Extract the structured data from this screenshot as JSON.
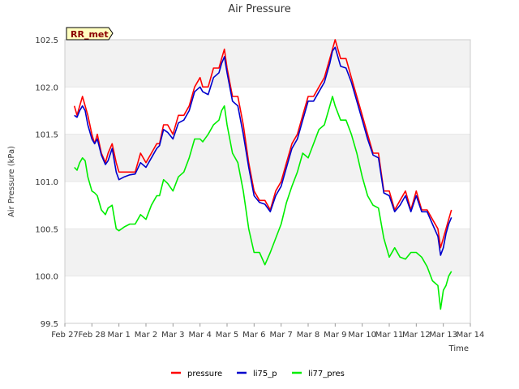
{
  "chart_data": {
    "type": "line",
    "title": "Air Pressure",
    "xlabel": "Time",
    "ylabel": "Air Pressure (kPa)",
    "ylim": [
      99.5,
      102.5
    ],
    "xlim": [
      0,
      15
    ],
    "x_unit": "days",
    "x_ticks": [
      {
        "x": 0,
        "label": "Feb 27"
      },
      {
        "x": 1,
        "label": "Feb 28"
      },
      {
        "x": 2,
        "label": "Mar 1"
      },
      {
        "x": 3,
        "label": "Mar 2"
      },
      {
        "x": 4,
        "label": "Mar 3"
      },
      {
        "x": 5,
        "label": "Mar 4"
      },
      {
        "x": 6,
        "label": "Mar 5"
      },
      {
        "x": 7,
        "label": "Mar 6"
      },
      {
        "x": 8,
        "label": "Mar 7"
      },
      {
        "x": 9,
        "label": "Mar 8"
      },
      {
        "x": 10,
        "label": "Mar 9"
      },
      {
        "x": 11,
        "label": "Mar 10"
      },
      {
        "x": 12,
        "label": "Mar 11"
      },
      {
        "x": 13,
        "label": "Mar 12"
      },
      {
        "x": 14,
        "label": "Mar 13"
      },
      {
        "x": 15,
        "label": "Mar 14"
      }
    ],
    "y_ticks": [
      99.5,
      100.0,
      100.5,
      101.0,
      101.5,
      102.0,
      102.5
    ],
    "grid": "horizontal bands",
    "legend_position": "bottom",
    "annotation": "RR_met",
    "series": [
      {
        "name": "pressure",
        "color": "#ff0000",
        "x": [
          0.35,
          0.45,
          0.55,
          0.65,
          0.75,
          0.85,
          1.0,
          1.1,
          1.2,
          1.35,
          1.5,
          1.6,
          1.75,
          1.9,
          2.0,
          2.2,
          2.4,
          2.6,
          2.8,
          3.0,
          3.2,
          3.4,
          3.5,
          3.65,
          3.8,
          4.0,
          4.2,
          4.4,
          4.6,
          4.8,
          5.0,
          5.1,
          5.3,
          5.5,
          5.7,
          5.8,
          5.9,
          6.0,
          6.2,
          6.4,
          6.6,
          6.8,
          7.0,
          7.2,
          7.4,
          7.6,
          7.8,
          8.0,
          8.2,
          8.4,
          8.6,
          8.8,
          9.0,
          9.2,
          9.4,
          9.6,
          9.8,
          9.9,
          10.0,
          10.2,
          10.4,
          10.6,
          10.8,
          11.0,
          11.2,
          11.4,
          11.6,
          11.8,
          12.0,
          12.2,
          12.4,
          12.6,
          12.8,
          13.0,
          13.2,
          13.4,
          13.6,
          13.8,
          13.9,
          14.0,
          14.1,
          14.2,
          14.3
        ],
        "y": [
          101.8,
          101.7,
          101.8,
          101.9,
          101.8,
          101.7,
          101.5,
          101.4,
          101.5,
          101.3,
          101.2,
          101.3,
          101.4,
          101.2,
          101.1,
          101.1,
          101.1,
          101.1,
          101.3,
          101.2,
          101.3,
          101.4,
          101.4,
          101.6,
          101.6,
          101.5,
          101.7,
          101.7,
          101.8,
          102.0,
          102.1,
          102.0,
          102.0,
          102.2,
          102.2,
          102.3,
          102.4,
          102.2,
          101.9,
          101.9,
          101.6,
          101.2,
          100.9,
          100.8,
          100.8,
          100.7,
          100.9,
          101.0,
          101.2,
          101.4,
          101.5,
          101.7,
          101.9,
          101.9,
          102.0,
          102.1,
          102.3,
          102.4,
          102.5,
          102.3,
          102.3,
          102.1,
          101.9,
          101.7,
          101.5,
          101.3,
          101.3,
          100.9,
          100.9,
          100.7,
          100.8,
          100.9,
          100.7,
          100.9,
          100.7,
          100.7,
          100.6,
          100.5,
          100.3,
          100.4,
          100.5,
          100.6,
          100.7
        ]
      },
      {
        "name": "li75_p",
        "color": "#0000cc",
        "x": [
          0.35,
          0.45,
          0.55,
          0.65,
          0.75,
          0.85,
          1.0,
          1.1,
          1.2,
          1.35,
          1.5,
          1.6,
          1.75,
          1.9,
          2.0,
          2.2,
          2.4,
          2.6,
          2.8,
          3.0,
          3.2,
          3.4,
          3.5,
          3.65,
          3.8,
          4.0,
          4.2,
          4.4,
          4.6,
          4.8,
          5.0,
          5.1,
          5.3,
          5.5,
          5.7,
          5.8,
          5.9,
          6.0,
          6.2,
          6.4,
          6.6,
          6.8,
          7.0,
          7.2,
          7.4,
          7.6,
          7.8,
          8.0,
          8.2,
          8.4,
          8.6,
          8.8,
          9.0,
          9.2,
          9.4,
          9.6,
          9.8,
          9.9,
          10.0,
          10.2,
          10.4,
          10.6,
          10.8,
          11.0,
          11.2,
          11.4,
          11.6,
          11.8,
          12.0,
          12.2,
          12.4,
          12.6,
          12.8,
          13.0,
          13.2,
          13.4,
          13.6,
          13.8,
          13.9,
          14.0,
          14.1,
          14.2,
          14.3
        ],
        "y": [
          101.7,
          101.68,
          101.75,
          101.8,
          101.75,
          101.6,
          101.45,
          101.4,
          101.45,
          101.28,
          101.18,
          101.22,
          101.35,
          101.1,
          101.02,
          101.05,
          101.07,
          101.08,
          101.2,
          101.15,
          101.25,
          101.35,
          101.38,
          101.55,
          101.52,
          101.45,
          101.62,
          101.65,
          101.75,
          101.95,
          102.0,
          101.95,
          101.92,
          102.1,
          102.15,
          102.25,
          102.32,
          102.15,
          101.85,
          101.8,
          101.5,
          101.15,
          100.85,
          100.78,
          100.76,
          100.68,
          100.85,
          100.95,
          101.15,
          101.35,
          101.45,
          101.65,
          101.85,
          101.85,
          101.95,
          102.05,
          102.25,
          102.38,
          102.42,
          102.22,
          102.2,
          102.05,
          101.85,
          101.65,
          101.45,
          101.28,
          101.25,
          100.88,
          100.85,
          100.68,
          100.75,
          100.85,
          100.68,
          100.85,
          100.68,
          100.68,
          100.55,
          100.42,
          100.22,
          100.3,
          100.45,
          100.55,
          100.62
        ]
      },
      {
        "name": "li77_pres",
        "color": "#00ee00",
        "x": [
          0.35,
          0.45,
          0.55,
          0.65,
          0.75,
          0.85,
          1.0,
          1.1,
          1.2,
          1.35,
          1.5,
          1.6,
          1.75,
          1.9,
          2.0,
          2.2,
          2.4,
          2.6,
          2.8,
          3.0,
          3.2,
          3.4,
          3.5,
          3.65,
          3.8,
          4.0,
          4.2,
          4.4,
          4.6,
          4.8,
          5.0,
          5.1,
          5.3,
          5.5,
          5.7,
          5.8,
          5.9,
          6.0,
          6.2,
          6.4,
          6.6,
          6.8,
          7.0,
          7.2,
          7.4,
          7.6,
          7.8,
          8.0,
          8.2,
          8.4,
          8.6,
          8.8,
          9.0,
          9.2,
          9.4,
          9.6,
          9.8,
          9.9,
          10.0,
          10.2,
          10.4,
          10.6,
          10.8,
          11.0,
          11.2,
          11.4,
          11.6,
          11.8,
          12.0,
          12.2,
          12.4,
          12.6,
          12.8,
          13.0,
          13.2,
          13.4,
          13.6,
          13.8,
          13.9,
          14.0,
          14.1,
          14.2,
          14.3
        ],
        "y": [
          101.15,
          101.12,
          101.2,
          101.25,
          101.22,
          101.05,
          100.9,
          100.88,
          100.85,
          100.7,
          100.65,
          100.72,
          100.75,
          100.5,
          100.48,
          100.52,
          100.55,
          100.55,
          100.65,
          100.6,
          100.75,
          100.85,
          100.85,
          101.02,
          100.98,
          100.9,
          101.05,
          101.1,
          101.25,
          101.45,
          101.45,
          101.42,
          101.5,
          101.6,
          101.65,
          101.75,
          101.8,
          101.6,
          101.3,
          101.2,
          100.9,
          100.5,
          100.25,
          100.25,
          100.12,
          100.25,
          100.4,
          100.55,
          100.78,
          100.95,
          101.1,
          101.3,
          101.25,
          101.4,
          101.55,
          101.6,
          101.8,
          101.9,
          101.8,
          101.65,
          101.65,
          101.5,
          101.3,
          101.05,
          100.85,
          100.75,
          100.72,
          100.4,
          100.2,
          100.3,
          100.2,
          100.18,
          100.25,
          100.25,
          100.2,
          100.1,
          99.95,
          99.9,
          99.65,
          99.85,
          99.9,
          100.0,
          100.05
        ]
      }
    ]
  }
}
